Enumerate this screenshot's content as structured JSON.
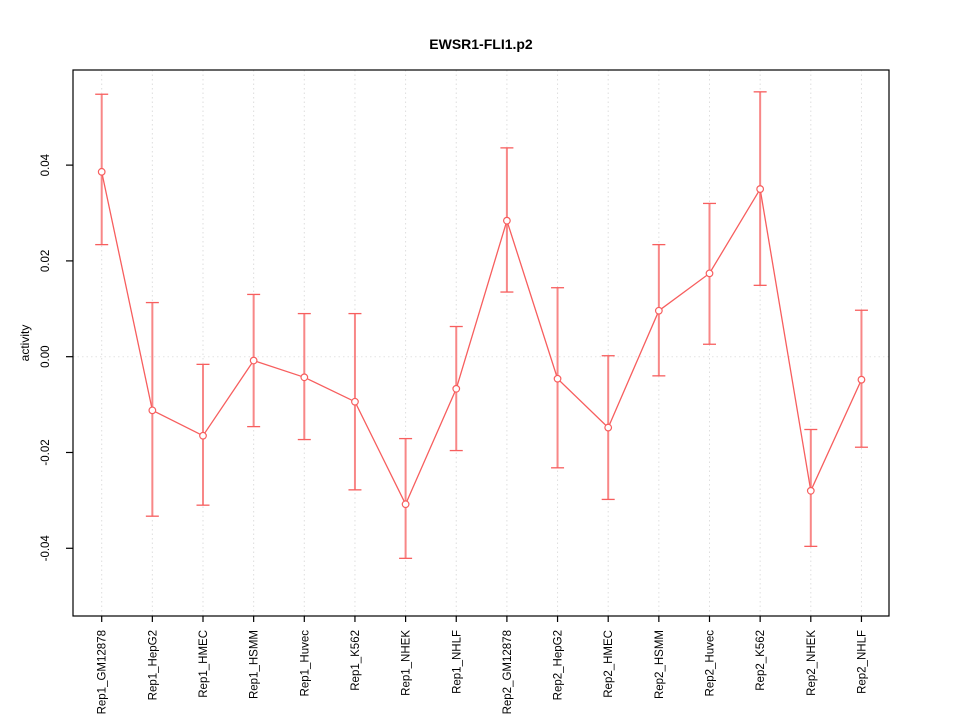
{
  "title": "EWSR1-FLI1.p2",
  "ylabel": "activity",
  "chart_data": {
    "type": "line",
    "title": "EWSR1-FLI1.p2",
    "xlabel": "",
    "ylabel": "activity",
    "legend_position": "none",
    "grid": "vertical dotted gridline at every category; dotted horizontal line at y=0 only",
    "marker": "open-circle",
    "error_bars": true,
    "categories": [
      "Rep1_GM12878",
      "Rep1_HepG2",
      "Rep1_HMEC",
      "Rep1_HSMM",
      "Rep1_Huvec",
      "Rep1_K562",
      "Rep1_NHEK",
      "Rep1_NHLF",
      "Rep2_GM12878",
      "Rep2_HepG2",
      "Rep2_HMEC",
      "Rep2_HSMM",
      "Rep2_Huvec",
      "Rep2_K562",
      "Rep2_NHEK",
      "Rep2_NHLF"
    ],
    "series": [
      {
        "name": "activity",
        "means": [
          0.0386,
          -0.0112,
          -0.0165,
          -0.0008,
          -0.0043,
          -0.0094,
          -0.0308,
          -0.0067,
          0.0284,
          -0.0046,
          -0.0148,
          0.0096,
          0.0174,
          0.035,
          -0.028,
          -0.0048
        ],
        "lower": [
          0.0234,
          -0.0333,
          -0.031,
          -0.0146,
          -0.0173,
          -0.0278,
          -0.0421,
          -0.0196,
          0.0135,
          -0.0232,
          -0.0298,
          -0.004,
          0.0026,
          0.0149,
          -0.0396,
          -0.0189
        ],
        "upper": [
          0.0548,
          0.0113,
          -0.0016,
          0.013,
          0.009,
          0.009,
          -0.0171,
          0.0063,
          0.0436,
          0.0144,
          0.0002,
          0.0234,
          0.032,
          0.0553,
          -0.0152,
          0.0097
        ]
      }
    ],
    "yticks": [
      -0.04,
      -0.02,
      0.0,
      0.02,
      0.04
    ],
    "ytick_labels": [
      "-0.04",
      "-0.02",
      "0.00",
      "0.02",
      "0.04"
    ],
    "ylim": [
      -0.05414,
      0.05986
    ],
    "colors": {
      "line": "#f75e5e",
      "error_bar_body": "#f88787",
      "marker_fill": "#ffffff",
      "gridline": "#dedede",
      "zero_line": "#e3e3e3",
      "axis": "#000000",
      "text": "#000000"
    }
  }
}
